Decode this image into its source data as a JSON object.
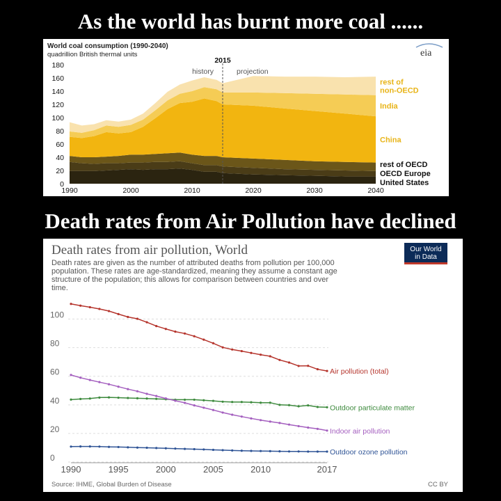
{
  "headline_top": "As the world has burnt more coal ......",
  "headline_bottom": "Death rates from Air Pollution have declined",
  "chart_data": [
    {
      "type": "area",
      "title": "World coal consumption (1990-2040)",
      "subtitle": "quadrillion British thermal units",
      "logo": "eia",
      "divider_year": "2015",
      "divider_labels": [
        "history",
        "projection"
      ],
      "y_ticks": [
        "0",
        "20",
        "40",
        "60",
        "80",
        "100",
        "120",
        "140",
        "160",
        "180"
      ],
      "x_ticks": [
        "1990",
        "2000",
        "2010",
        "2020",
        "2030",
        "2040"
      ],
      "ylim": [
        0,
        180
      ],
      "xlim": [
        1990,
        2040
      ],
      "x": [
        1990,
        1992,
        1994,
        1996,
        1998,
        2000,
        2002,
        2004,
        2006,
        2008,
        2010,
        2012,
        2014,
        2015,
        2020,
        2025,
        2030,
        2035,
        2040
      ],
      "series": [
        {
          "name": "United States",
          "color": "#2b2410",
          "values": [
            19,
            19,
            19,
            20,
            21,
            22,
            21,
            22,
            22,
            23,
            21,
            18,
            18,
            16,
            14,
            13,
            12,
            11,
            11
          ]
        },
        {
          "name": "OECD Europe",
          "color": "#4a3c17",
          "values": [
            14,
            12,
            11,
            11,
            10,
            10,
            11,
            11,
            11,
            11,
            10,
            10,
            10,
            10,
            10,
            9,
            9,
            9,
            8
          ]
        },
        {
          "name": "rest of OECD",
          "color": "#6b5619",
          "values": [
            9,
            9,
            10,
            10,
            11,
            12,
            12,
            12,
            13,
            13,
            13,
            14,
            14,
            14,
            14,
            14,
            13,
            13,
            13
          ]
        },
        {
          "name": "China",
          "color": "#f2b510",
          "values": [
            29,
            29,
            32,
            37,
            34,
            34,
            42,
            54,
            67,
            75,
            80,
            87,
            83,
            80,
            80,
            78,
            76,
            73,
            70
          ]
        },
        {
          "name": "India",
          "color": "#f5cc55",
          "values": [
            8,
            8,
            9,
            10,
            10,
            11,
            11,
            12,
            13,
            14,
            16,
            17,
            18,
            18,
            20,
            23,
            26,
            29,
            32
          ]
        },
        {
          "name": "rest of non-OECD",
          "color": "#f9e2ae",
          "values": [
            14,
            11,
            9,
            8,
            8,
            8,
            9,
            11,
            13,
            14,
            16,
            15,
            14,
            14,
            25,
            25,
            26,
            26,
            28
          ]
        }
      ]
    },
    {
      "type": "line",
      "title": "Death rates from air pollution, World",
      "description_lines": [
        "Death rates are given as the number of attributed deaths from pollution per 100,000",
        "population. These rates are age-standardized, meaning they assume a constant age",
        "structure of the population; this allows for comparison between countries and over",
        "time."
      ],
      "logo_lines": [
        "Our World",
        "in Data"
      ],
      "source": "Source: IHME, Global Burden of Disease",
      "license": "CC BY",
      "y_ticks": [
        "0",
        "20",
        "40",
        "60",
        "80",
        "100"
      ],
      "x_ticks": [
        "1990",
        "1995",
        "2000",
        "2005",
        "2010",
        "2017"
      ],
      "ylim": [
        0,
        110
      ],
      "x": [
        1990,
        1991,
        1992,
        1993,
        1994,
        1995,
        1996,
        1997,
        1998,
        1999,
        2000,
        2001,
        2002,
        2003,
        2004,
        2005,
        2006,
        2007,
        2008,
        2009,
        2010,
        2011,
        2012,
        2013,
        2014,
        2015,
        2016,
        2017
      ],
      "series": [
        {
          "name": "Air pollution (total)",
          "color": "#b5342c",
          "values": [
            110.6,
            109.4,
            108.3,
            107.1,
            105.6,
            103.5,
            101.5,
            100.2,
            97.8,
            95.1,
            93.1,
            91.2,
            89.9,
            88.0,
            85.6,
            83.1,
            80.2,
            78.7,
            77.6,
            76.3,
            75.1,
            74.0,
            71.4,
            69.6,
            67.2,
            67.3,
            64.9,
            63.7
          ]
        },
        {
          "name": "Outdoor particulate matter",
          "color": "#3d8a3d",
          "values": [
            43.7,
            44.1,
            44.4,
            45.1,
            45.2,
            45.0,
            44.8,
            44.6,
            44.4,
            44.2,
            43.9,
            43.6,
            43.6,
            43.6,
            43.2,
            42.8,
            42.2,
            42.0,
            42.0,
            41.8,
            41.5,
            41.5,
            40.0,
            39.8,
            39.0,
            39.6,
            38.5,
            38.3
          ]
        },
        {
          "name": "Indoor air pollution",
          "color": "#a45fbf",
          "values": [
            60.9,
            59.0,
            57.4,
            55.9,
            54.4,
            52.7,
            51.0,
            49.5,
            47.7,
            46.2,
            44.5,
            42.9,
            41.4,
            39.6,
            38.0,
            36.4,
            34.6,
            33.1,
            31.8,
            30.5,
            29.3,
            28.3,
            27.3,
            26.2,
            25.1,
            24.1,
            23.2,
            22.0
          ]
        },
        {
          "name": "Outdoor ozone pollution",
          "color": "#2f5496",
          "values": [
            10.8,
            10.9,
            10.9,
            10.8,
            10.6,
            10.5,
            10.3,
            10.1,
            10.0,
            9.8,
            9.6,
            9.4,
            9.2,
            9.0,
            8.8,
            8.5,
            8.3,
            8.1,
            7.9,
            7.8,
            7.7,
            7.6,
            7.5,
            7.4,
            7.4,
            7.3,
            7.3,
            7.3
          ]
        }
      ]
    }
  ]
}
